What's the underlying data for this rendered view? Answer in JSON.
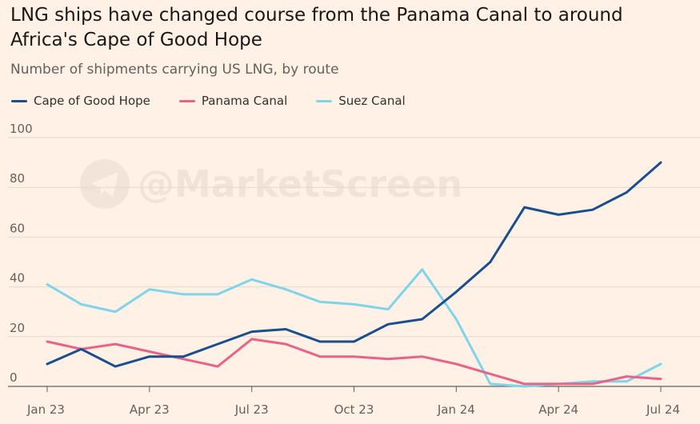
{
  "title": "LNG ships have changed course from the Panama Canal to around Africa's Cape of Good Hope",
  "subtitle": "Number of shipments carrying US LNG, by route",
  "watermark": "@MarketScreen",
  "chart_data": {
    "type": "line",
    "title": "LNG ships have changed course from the Panama Canal to around Africa's Cape of Good Hope",
    "subtitle": "Number of shipments carrying US LNG, by route",
    "xlabel": "",
    "ylabel": "",
    "ylim": [
      0,
      100
    ],
    "yticks": [
      0,
      20,
      40,
      60,
      80,
      100
    ],
    "x": [
      "Jan 23",
      "Feb 23",
      "Mar 23",
      "Apr 23",
      "May 23",
      "Jun 23",
      "Jul 23",
      "Aug 23",
      "Sep 23",
      "Oct 23",
      "Nov 23",
      "Dec 23",
      "Jan 24",
      "Feb 24",
      "Mar 24",
      "Apr 24",
      "May 24",
      "Jun 24",
      "Jul 24"
    ],
    "xtick_labels": [
      "Jan 23",
      "Apr 23",
      "Jul 23",
      "Oct 23",
      "Jan 24",
      "Apr 24",
      "Jul 24"
    ],
    "xtick_index": [
      0,
      3,
      6,
      9,
      12,
      15,
      18
    ],
    "series": [
      {
        "name": "Cape of Good Hope",
        "color": "#1a4e8f",
        "values": [
          9,
          15,
          8,
          12,
          12,
          17,
          22,
          23,
          18,
          18,
          25,
          27,
          38,
          50,
          72,
          69,
          71,
          78,
          90
        ]
      },
      {
        "name": "Panama Canal",
        "color": "#e7638a",
        "values": [
          18,
          15,
          17,
          14,
          11,
          8,
          19,
          17,
          12,
          12,
          11,
          12,
          9,
          5,
          1,
          1,
          1,
          4,
          3
        ]
      },
      {
        "name": "Suez Canal",
        "color": "#7fd4ec",
        "values": [
          41,
          33,
          30,
          39,
          37,
          37,
          43,
          39,
          34,
          33,
          31,
          47,
          27,
          1,
          0,
          1,
          2,
          2,
          9
        ]
      }
    ],
    "grid": true,
    "legend_position": "top-left"
  }
}
